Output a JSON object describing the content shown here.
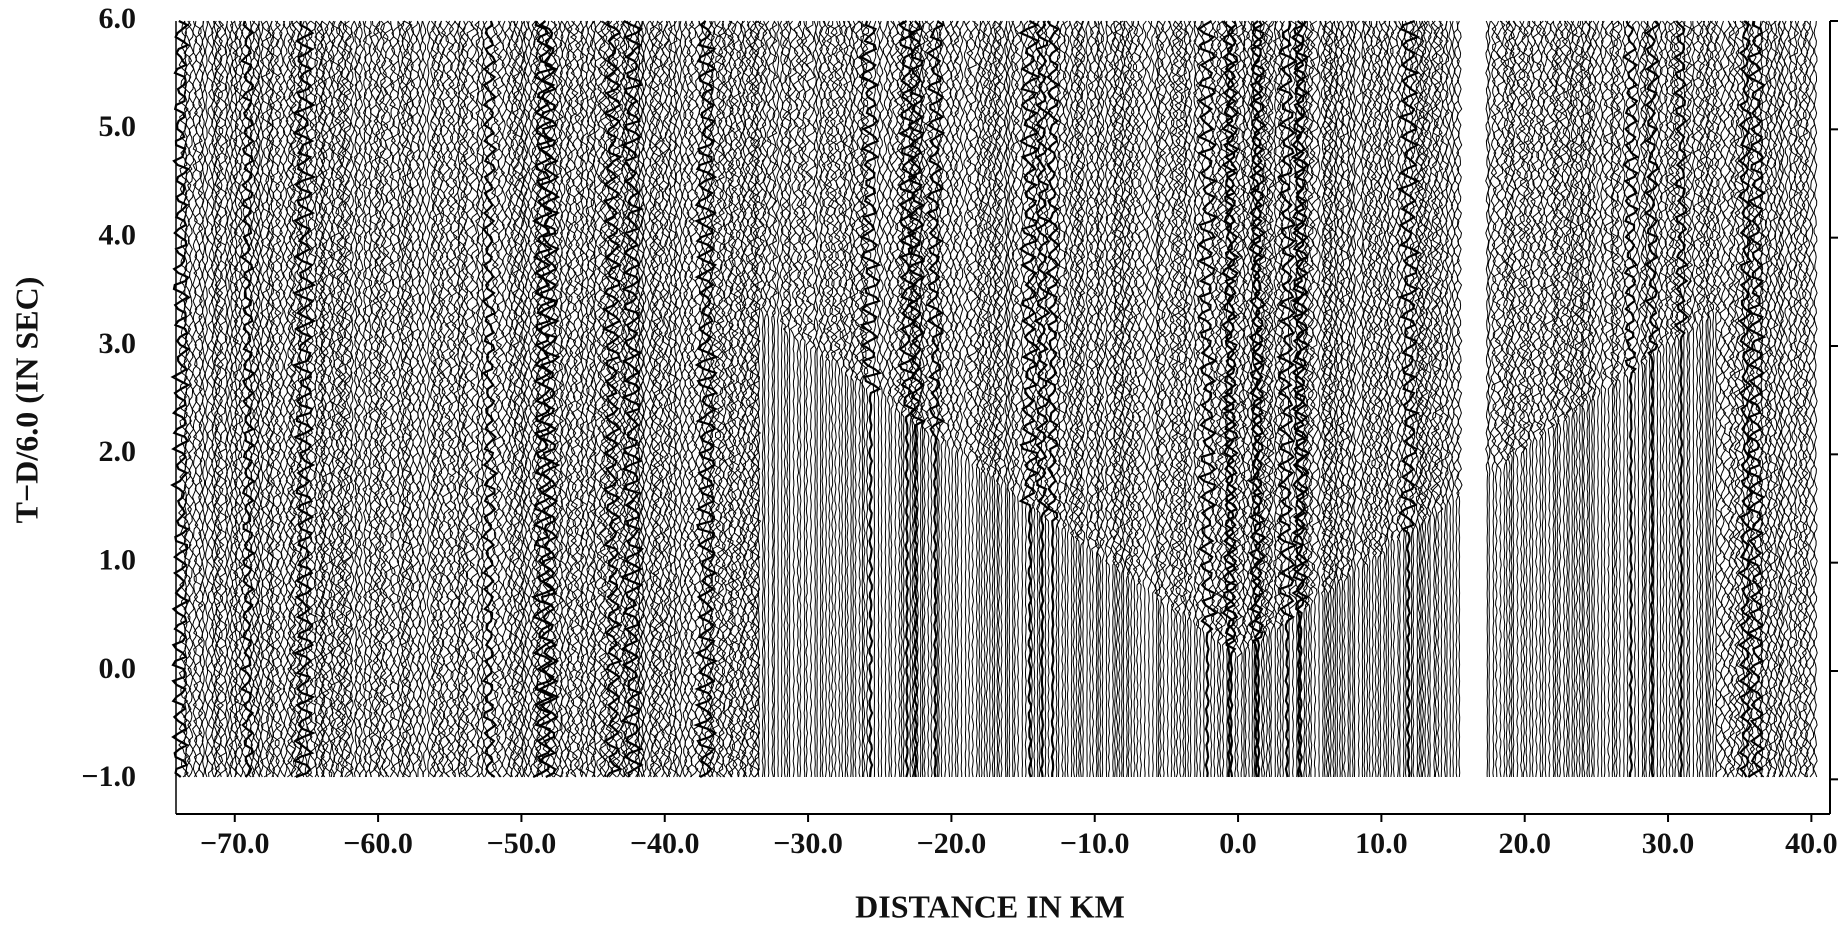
{
  "chart_data": {
    "type": "seismic-section",
    "xlabel": "DISTANCE IN KM",
    "ylabel": "T−D/6.0 (IN SEC)",
    "xlim": [
      -74.1,
      41.3
    ],
    "ylim": [
      -1.32,
      6.0
    ],
    "xticks": [
      {
        "value": -70,
        "label": "−70.0"
      },
      {
        "value": -60,
        "label": "−60.0"
      },
      {
        "value": -50,
        "label": "−50.0"
      },
      {
        "value": -40,
        "label": "−40.0"
      },
      {
        "value": -30,
        "label": "−30.0"
      },
      {
        "value": -20,
        "label": "−20.0"
      },
      {
        "value": -10,
        "label": "−10.0"
      },
      {
        "value": 0,
        "label": "0.0"
      },
      {
        "value": 10,
        "label": "10.0"
      },
      {
        "value": 20,
        "label": "20.0"
      },
      {
        "value": 30,
        "label": "30.0"
      },
      {
        "value": 40,
        "label": "40.0"
      }
    ],
    "yticks": [
      {
        "value": -1,
        "label": "−1.0"
      },
      {
        "value": 0,
        "label": "0.0"
      },
      {
        "value": 1,
        "label": "1.0"
      },
      {
        "value": 2,
        "label": "2.0"
      },
      {
        "value": 3,
        "label": "3.0"
      },
      {
        "value": 4,
        "label": "4.0"
      },
      {
        "value": 5,
        "label": "5.0"
      },
      {
        "value": 6,
        "label": "6.0"
      }
    ],
    "color": "#000000"
  }
}
